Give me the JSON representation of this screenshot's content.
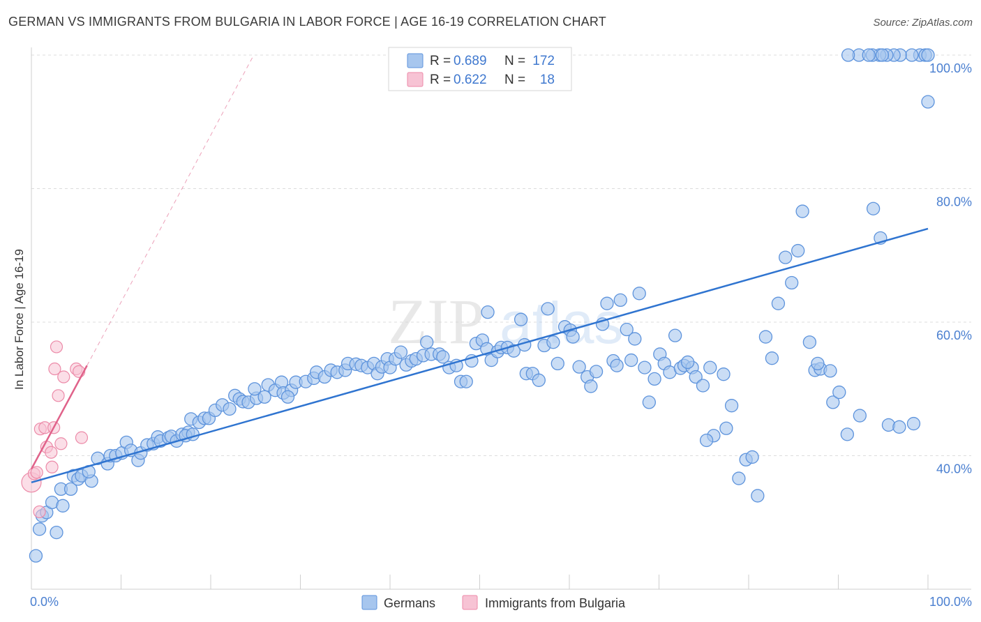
{
  "header": {
    "title": "GERMAN VS IMMIGRANTS FROM BULGARIA IN LABOR FORCE | AGE 16-19 CORRELATION CHART",
    "source": "Source: ZipAtlas.com"
  },
  "watermark": {
    "part1": "ZIP",
    "part2": "atlas"
  },
  "colors": {
    "blue_fill": "#a7c6ee",
    "blue_stroke": "#5d93dc",
    "blue_line": "#2f74d0",
    "pink_fill": "#f7c3d4",
    "pink_stroke": "#ec8aa8",
    "pink_line": "#e0628a",
    "grid": "#dcdcdc",
    "axis_text": "#4a7fd0"
  },
  "legend": {
    "rows": [
      {
        "r_label": "R =",
        "r_value": "0.689",
        "n_label": "N =",
        "n_value": "172"
      },
      {
        "r_label": "R =",
        "r_value": "0.622",
        "n_label": "N =",
        "n_value": "18"
      }
    ]
  },
  "chart_data": {
    "type": "scatter",
    "title": "GERMAN VS IMMIGRANTS FROM BULGARIA IN LABOR FORCE | AGE 16-19 CORRELATION CHART",
    "xlabel": "",
    "ylabel": "In Labor Force | Age 16-19",
    "xlim": [
      0,
      100
    ],
    "ylim": [
      20,
      100
    ],
    "x_tick_labels": [
      "0.0%",
      "100.0%"
    ],
    "y_ticks": [
      40,
      60,
      80,
      100
    ],
    "y_tick_labels": [
      "40.0%",
      "60.0%",
      "80.0%",
      "100.0%"
    ],
    "grid": true,
    "legend_position": "bottom",
    "series": [
      {
        "name": "Germans",
        "R": 0.689,
        "N": 172,
        "trend": {
          "x": [
            0,
            100
          ],
          "y": [
            36,
            74
          ]
        },
        "points": [
          [
            0.5,
            25
          ],
          [
            0.9,
            29
          ],
          [
            1.2,
            31
          ],
          [
            1.7,
            31.5
          ],
          [
            2.3,
            33
          ],
          [
            2.8,
            28.5
          ],
          [
            3.5,
            32.5
          ],
          [
            3.3,
            35
          ],
          [
            4.4,
            35
          ],
          [
            4.7,
            37
          ],
          [
            5.2,
            36.5
          ],
          [
            5.6,
            37
          ],
          [
            6.7,
            36.2
          ],
          [
            6.4,
            37.6
          ],
          [
            7.4,
            39.6
          ],
          [
            8.5,
            38.8
          ],
          [
            8.8,
            40
          ],
          [
            9.4,
            40
          ],
          [
            10.1,
            40.4
          ],
          [
            10.6,
            42
          ],
          [
            11.1,
            40.8
          ],
          [
            11.9,
            39.3
          ],
          [
            12.2,
            40.4
          ],
          [
            12.9,
            41.6
          ],
          [
            13.6,
            41.8
          ],
          [
            14.1,
            42.8
          ],
          [
            14.4,
            42.2
          ],
          [
            15.3,
            42.7
          ],
          [
            15.6,
            42.9
          ],
          [
            16.2,
            42.2
          ],
          [
            16.8,
            43.2
          ],
          [
            17.5,
            43.5
          ],
          [
            17.2,
            43
          ],
          [
            18,
            43.2
          ],
          [
            17.8,
            45.5
          ],
          [
            18.7,
            45
          ],
          [
            19.3,
            45.6
          ],
          [
            19.8,
            45.6
          ],
          [
            20.5,
            46.8
          ],
          [
            21.3,
            47.6
          ],
          [
            22.1,
            47
          ],
          [
            22.7,
            49
          ],
          [
            23.2,
            48.5
          ],
          [
            23.6,
            48.1
          ],
          [
            24.2,
            48
          ],
          [
            25.1,
            48.6
          ],
          [
            24.9,
            50
          ],
          [
            26,
            48.8
          ],
          [
            26.4,
            50.6
          ],
          [
            27.2,
            49.8
          ],
          [
            27.9,
            51
          ],
          [
            28.1,
            49.4
          ],
          [
            29,
            49.8
          ],
          [
            28.6,
            48.8
          ],
          [
            29.5,
            51
          ],
          [
            30.6,
            51.1
          ],
          [
            31.5,
            51.6
          ],
          [
            31.8,
            52.5
          ],
          [
            32.7,
            51.8
          ],
          [
            33.4,
            52.8
          ],
          [
            34.1,
            52.5
          ],
          [
            35,
            52.8
          ],
          [
            35.3,
            53.8
          ],
          [
            36.2,
            53.7
          ],
          [
            36.8,
            53.5
          ],
          [
            37.5,
            53.2
          ],
          [
            38.2,
            53.8
          ],
          [
            38.6,
            52.3
          ],
          [
            39.1,
            53.3
          ],
          [
            39.7,
            54.5
          ],
          [
            40,
            53.2
          ],
          [
            40.6,
            54.5
          ],
          [
            41.2,
            55.5
          ],
          [
            41.8,
            53.6
          ],
          [
            42.4,
            54.2
          ],
          [
            42.9,
            54.5
          ],
          [
            43.7,
            55
          ],
          [
            44.1,
            57
          ],
          [
            44.6,
            55.2
          ],
          [
            45.5,
            55.2
          ],
          [
            45.9,
            54.8
          ],
          [
            46.6,
            53.2
          ],
          [
            47.4,
            53.5
          ],
          [
            47.9,
            51.1
          ],
          [
            48.5,
            51.1
          ],
          [
            49.1,
            54.2
          ],
          [
            49.6,
            56.8
          ],
          [
            50.3,
            57.3
          ],
          [
            50.8,
            56
          ],
          [
            51.3,
            54.3
          ],
          [
            50.9,
            61.5
          ],
          [
            52,
            55.6
          ],
          [
            52.4,
            56.2
          ],
          [
            53.1,
            56.2
          ],
          [
            53.8,
            55.7
          ],
          [
            54.6,
            60.4
          ],
          [
            55,
            56.6
          ],
          [
            55.2,
            52.3
          ],
          [
            55.9,
            52.3
          ],
          [
            56.6,
            51.3
          ],
          [
            57.6,
            62
          ],
          [
            57.2,
            56.5
          ],
          [
            58.2,
            57
          ],
          [
            58.7,
            53.8
          ],
          [
            59.5,
            59.3
          ],
          [
            60.1,
            58.8
          ],
          [
            60.4,
            57.8
          ],
          [
            61.1,
            53.3
          ],
          [
            62,
            51.8
          ],
          [
            62.4,
            50.4
          ],
          [
            63,
            52.6
          ],
          [
            63.7,
            59.7
          ],
          [
            64.2,
            62.8
          ],
          [
            64.9,
            54.2
          ],
          [
            65.3,
            53.5
          ],
          [
            65.7,
            63.3
          ],
          [
            66.4,
            58.9
          ],
          [
            66.9,
            54.3
          ],
          [
            67.3,
            57.5
          ],
          [
            67.8,
            64.3
          ],
          [
            68.4,
            53.2
          ],
          [
            68.9,
            48
          ],
          [
            69.5,
            51.5
          ],
          [
            70.1,
            55.2
          ],
          [
            70.6,
            53.8
          ],
          [
            71.2,
            52.5
          ],
          [
            71.8,
            58
          ],
          [
            72.4,
            53.1
          ],
          [
            72.8,
            53.5
          ],
          [
            73.7,
            53.2
          ],
          [
            73.2,
            54
          ],
          [
            74.1,
            51.8
          ],
          [
            74.9,
            50.5
          ],
          [
            75.7,
            53.2
          ],
          [
            76.1,
            43
          ],
          [
            75.3,
            42.3
          ],
          [
            77.2,
            52.2
          ],
          [
            77.5,
            44.1
          ],
          [
            78.1,
            47.5
          ],
          [
            78.9,
            36.6
          ],
          [
            79.7,
            39.4
          ],
          [
            80.4,
            39.8
          ],
          [
            81,
            34
          ],
          [
            81.9,
            57.8
          ],
          [
            82.6,
            54.6
          ],
          [
            83.3,
            62.8
          ],
          [
            84.1,
            69.7
          ],
          [
            84.8,
            65.9
          ],
          [
            85.5,
            70.7
          ],
          [
            86,
            76.6
          ],
          [
            86.8,
            57
          ],
          [
            87.4,
            52.8
          ],
          [
            88,
            53
          ],
          [
            87.7,
            53.8
          ],
          [
            89.1,
            52.7
          ],
          [
            89.4,
            48
          ],
          [
            90.1,
            49.5
          ],
          [
            91,
            43.2
          ],
          [
            92.4,
            46
          ],
          [
            93.9,
            77
          ],
          [
            94.7,
            72.6
          ],
          [
            95.6,
            44.6
          ],
          [
            96.8,
            44.3
          ],
          [
            98.4,
            44.8
          ],
          [
            99.1,
            100
          ],
          [
            99.7,
            100
          ],
          [
            100,
            100
          ],
          [
            98.2,
            100
          ],
          [
            96.9,
            100
          ],
          [
            96.2,
            100
          ],
          [
            95.4,
            100
          ],
          [
            94.6,
            100
          ],
          [
            93.8,
            100
          ],
          [
            92.3,
            100
          ],
          [
            91.1,
            100
          ],
          [
            93.4,
            100
          ],
          [
            94.9,
            100
          ],
          [
            100,
            93
          ]
        ]
      },
      {
        "name": "Immigrants from Bulgaria",
        "R": 0.622,
        "N": 18,
        "trend": {
          "x": [
            0,
            6.2
          ],
          "y": [
            38,
            53.5
          ]
        },
        "points": [
          [
            0,
            36
          ],
          [
            0.3,
            37.3
          ],
          [
            0.6,
            37.5
          ],
          [
            0.9,
            31.6
          ],
          [
            1,
            44
          ],
          [
            1.5,
            44.2
          ],
          [
            1.7,
            41.3
          ],
          [
            2.2,
            40.5
          ],
          [
            2.3,
            38.3
          ],
          [
            2.5,
            44.2
          ],
          [
            2.6,
            53
          ],
          [
            2.8,
            56.3
          ],
          [
            3,
            49
          ],
          [
            3.3,
            41.8
          ],
          [
            3.6,
            51.8
          ],
          [
            5,
            53
          ],
          [
            5.3,
            52.6
          ],
          [
            5.6,
            42.7
          ]
        ]
      }
    ]
  },
  "bottom_legend": {
    "items": [
      {
        "label": "Germans"
      },
      {
        "label": "Immigrants from Bulgaria"
      }
    ]
  }
}
